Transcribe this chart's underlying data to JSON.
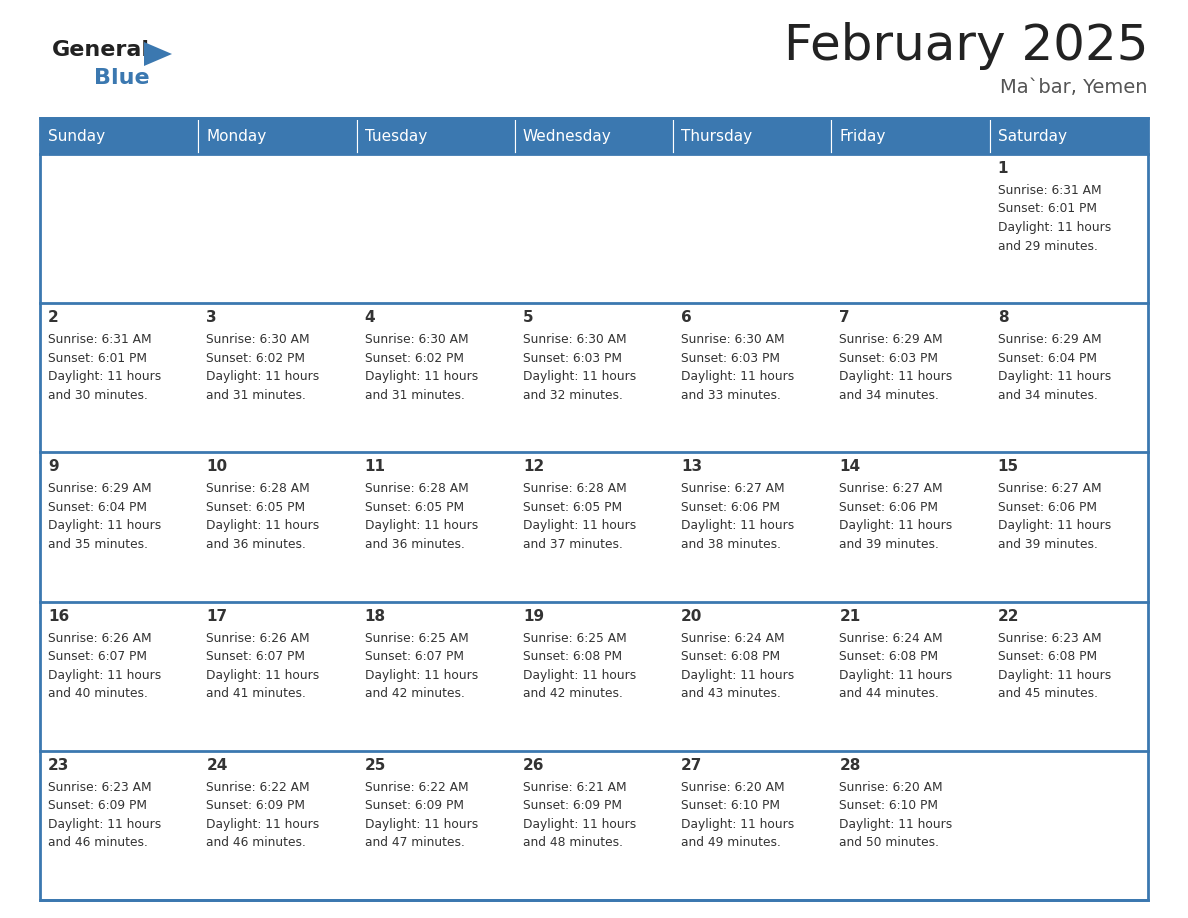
{
  "title": "February 2025",
  "subtitle": "Ma`bar, Yemen",
  "header_bg_color": "#3b78b0",
  "header_text_color": "#ffffff",
  "cell_bg_color": "#ffffff",
  "day_number_color": "#333333",
  "info_text_color": "#333333",
  "border_color": "#3b78b0",
  "outer_border_color": "#3b78b0",
  "days_of_week": [
    "Sunday",
    "Monday",
    "Tuesday",
    "Wednesday",
    "Thursday",
    "Friday",
    "Saturday"
  ],
  "title_fontsize": 36,
  "subtitle_fontsize": 14,
  "header_fontsize": 11,
  "day_num_fontsize": 11,
  "info_fontsize": 8.8,
  "calendar_data": [
    [
      null,
      null,
      null,
      null,
      null,
      null,
      {
        "day": 1,
        "sunrise": "6:31 AM",
        "sunset": "6:01 PM",
        "daylight_hours": 11,
        "daylight_minutes": 29
      }
    ],
    [
      {
        "day": 2,
        "sunrise": "6:31 AM",
        "sunset": "6:01 PM",
        "daylight_hours": 11,
        "daylight_minutes": 30
      },
      {
        "day": 3,
        "sunrise": "6:30 AM",
        "sunset": "6:02 PM",
        "daylight_hours": 11,
        "daylight_minutes": 31
      },
      {
        "day": 4,
        "sunrise": "6:30 AM",
        "sunset": "6:02 PM",
        "daylight_hours": 11,
        "daylight_minutes": 31
      },
      {
        "day": 5,
        "sunrise": "6:30 AM",
        "sunset": "6:03 PM",
        "daylight_hours": 11,
        "daylight_minutes": 32
      },
      {
        "day": 6,
        "sunrise": "6:30 AM",
        "sunset": "6:03 PM",
        "daylight_hours": 11,
        "daylight_minutes": 33
      },
      {
        "day": 7,
        "sunrise": "6:29 AM",
        "sunset": "6:03 PM",
        "daylight_hours": 11,
        "daylight_minutes": 34
      },
      {
        "day": 8,
        "sunrise": "6:29 AM",
        "sunset": "6:04 PM",
        "daylight_hours": 11,
        "daylight_minutes": 34
      }
    ],
    [
      {
        "day": 9,
        "sunrise": "6:29 AM",
        "sunset": "6:04 PM",
        "daylight_hours": 11,
        "daylight_minutes": 35
      },
      {
        "day": 10,
        "sunrise": "6:28 AM",
        "sunset": "6:05 PM",
        "daylight_hours": 11,
        "daylight_minutes": 36
      },
      {
        "day": 11,
        "sunrise": "6:28 AM",
        "sunset": "6:05 PM",
        "daylight_hours": 11,
        "daylight_minutes": 36
      },
      {
        "day": 12,
        "sunrise": "6:28 AM",
        "sunset": "6:05 PM",
        "daylight_hours": 11,
        "daylight_minutes": 37
      },
      {
        "day": 13,
        "sunrise": "6:27 AM",
        "sunset": "6:06 PM",
        "daylight_hours": 11,
        "daylight_minutes": 38
      },
      {
        "day": 14,
        "sunrise": "6:27 AM",
        "sunset": "6:06 PM",
        "daylight_hours": 11,
        "daylight_minutes": 39
      },
      {
        "day": 15,
        "sunrise": "6:27 AM",
        "sunset": "6:06 PM",
        "daylight_hours": 11,
        "daylight_minutes": 39
      }
    ],
    [
      {
        "day": 16,
        "sunrise": "6:26 AM",
        "sunset": "6:07 PM",
        "daylight_hours": 11,
        "daylight_minutes": 40
      },
      {
        "day": 17,
        "sunrise": "6:26 AM",
        "sunset": "6:07 PM",
        "daylight_hours": 11,
        "daylight_minutes": 41
      },
      {
        "day": 18,
        "sunrise": "6:25 AM",
        "sunset": "6:07 PM",
        "daylight_hours": 11,
        "daylight_minutes": 42
      },
      {
        "day": 19,
        "sunrise": "6:25 AM",
        "sunset": "6:08 PM",
        "daylight_hours": 11,
        "daylight_minutes": 42
      },
      {
        "day": 20,
        "sunrise": "6:24 AM",
        "sunset": "6:08 PM",
        "daylight_hours": 11,
        "daylight_minutes": 43
      },
      {
        "day": 21,
        "sunrise": "6:24 AM",
        "sunset": "6:08 PM",
        "daylight_hours": 11,
        "daylight_minutes": 44
      },
      {
        "day": 22,
        "sunrise": "6:23 AM",
        "sunset": "6:08 PM",
        "daylight_hours": 11,
        "daylight_minutes": 45
      }
    ],
    [
      {
        "day": 23,
        "sunrise": "6:23 AM",
        "sunset": "6:09 PM",
        "daylight_hours": 11,
        "daylight_minutes": 46
      },
      {
        "day": 24,
        "sunrise": "6:22 AM",
        "sunset": "6:09 PM",
        "daylight_hours": 11,
        "daylight_minutes": 46
      },
      {
        "day": 25,
        "sunrise": "6:22 AM",
        "sunset": "6:09 PM",
        "daylight_hours": 11,
        "daylight_minutes": 47
      },
      {
        "day": 26,
        "sunrise": "6:21 AM",
        "sunset": "6:09 PM",
        "daylight_hours": 11,
        "daylight_minutes": 48
      },
      {
        "day": 27,
        "sunrise": "6:20 AM",
        "sunset": "6:10 PM",
        "daylight_hours": 11,
        "daylight_minutes": 49
      },
      {
        "day": 28,
        "sunrise": "6:20 AM",
        "sunset": "6:10 PM",
        "daylight_hours": 11,
        "daylight_minutes": 50
      },
      null
    ]
  ]
}
